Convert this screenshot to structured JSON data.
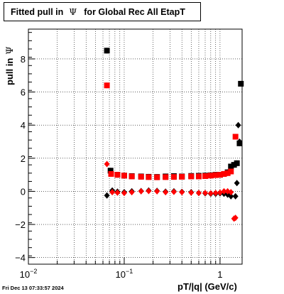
{
  "title": {
    "before": "Fitted pull in",
    "symbol": "Ψ",
    "after": "for Global Rec All EtapT"
  },
  "ylabel": {
    "text": "pull in",
    "symbol": "Ψ"
  },
  "xlabel": "pT/|q| (GeV/c)",
  "timestamp": "Fri Dec 13 07:33:57 2024",
  "x_tick_labels": [
    "10−2",
    "10−1",
    "1"
  ],
  "y_tick_labels": [
    "−4",
    "−2",
    "0",
    "2",
    "4",
    "6",
    "8"
  ],
  "colors": {
    "black": "#000000",
    "red": "#ff0000"
  },
  "chart_data": {
    "type": "scatter",
    "x_scale": "log",
    "xlim": [
      0.01,
      1.7
    ],
    "ylim": [
      -4.4,
      9.8
    ],
    "y_ticks": [
      -4,
      -2,
      0,
      2,
      4,
      6,
      8
    ],
    "grid": true,
    "series": [
      {
        "marker": "square",
        "color": "#000000",
        "points": [
          [
            0.066,
            8.5
          ],
          [
            0.072,
            1.25
          ],
          [
            0.085,
            1.0
          ],
          [
            0.1,
            0.95
          ],
          [
            0.12,
            0.92
          ],
          [
            0.15,
            0.9
          ],
          [
            0.18,
            0.88
          ],
          [
            0.22,
            0.87
          ],
          [
            0.27,
            0.9
          ],
          [
            0.33,
            0.92
          ],
          [
            0.4,
            0.9
          ],
          [
            0.5,
            0.93
          ],
          [
            0.6,
            0.94
          ],
          [
            0.7,
            0.95
          ],
          [
            0.8,
            0.97
          ],
          [
            0.9,
            1.0
          ],
          [
            1.0,
            1.0
          ],
          [
            1.1,
            1.05
          ],
          [
            1.2,
            1.15
          ],
          [
            1.3,
            1.5
          ],
          [
            1.4,
            1.6
          ],
          [
            1.5,
            1.7
          ],
          [
            1.6,
            2.9
          ],
          [
            1.65,
            6.5
          ]
        ]
      },
      {
        "marker": "square",
        "color": "#ff0000",
        "points": [
          [
            0.066,
            6.4
          ],
          [
            0.073,
            1.05
          ],
          [
            0.085,
            1.0
          ],
          [
            0.1,
            0.95
          ],
          [
            0.12,
            0.9
          ],
          [
            0.15,
            0.88
          ],
          [
            0.18,
            0.86
          ],
          [
            0.22,
            0.85
          ],
          [
            0.27,
            0.86
          ],
          [
            0.33,
            0.87
          ],
          [
            0.4,
            0.88
          ],
          [
            0.5,
            0.9
          ],
          [
            0.6,
            0.9
          ],
          [
            0.7,
            0.92
          ],
          [
            0.8,
            0.95
          ],
          [
            0.9,
            0.98
          ],
          [
            1.0,
            1.0
          ],
          [
            1.1,
            1.05
          ],
          [
            1.2,
            1.1
          ],
          [
            1.3,
            1.2
          ],
          [
            1.45,
            3.3
          ]
        ]
      },
      {
        "marker": "diamond",
        "color": "#000000",
        "points": [
          [
            0.066,
            -0.25
          ],
          [
            0.075,
            0.05
          ],
          [
            0.085,
            -0.02
          ],
          [
            0.1,
            -0.05
          ],
          [
            0.12,
            0.0
          ],
          [
            0.15,
            0.02
          ],
          [
            0.18,
            0.05
          ],
          [
            0.22,
            0.03
          ],
          [
            0.27,
            -0.02
          ],
          [
            0.33,
            0.0
          ],
          [
            0.4,
            -0.03
          ],
          [
            0.5,
            -0.05
          ],
          [
            0.6,
            -0.1
          ],
          [
            0.7,
            -0.12
          ],
          [
            0.8,
            -0.15
          ],
          [
            0.9,
            -0.15
          ],
          [
            1.0,
            -0.12
          ],
          [
            1.1,
            -0.15
          ],
          [
            1.2,
            -0.2
          ],
          [
            1.3,
            -0.3
          ],
          [
            1.45,
            -0.3
          ],
          [
            1.5,
            0.5
          ],
          [
            1.55,
            4.0
          ],
          [
            1.6,
            3.0
          ]
        ]
      },
      {
        "marker": "diamond",
        "color": "#ff0000",
        "points": [
          [
            0.066,
            1.65
          ],
          [
            0.075,
            -0.05
          ],
          [
            0.085,
            -0.08
          ],
          [
            0.1,
            -0.1
          ],
          [
            0.12,
            -0.05
          ],
          [
            0.15,
            0.0
          ],
          [
            0.18,
            0.02
          ],
          [
            0.22,
            0.0
          ],
          [
            0.27,
            -0.05
          ],
          [
            0.33,
            -0.03
          ],
          [
            0.4,
            -0.05
          ],
          [
            0.5,
            -0.08
          ],
          [
            0.6,
            -0.1
          ],
          [
            0.7,
            -0.1
          ],
          [
            0.8,
            -0.12
          ],
          [
            0.9,
            -0.1
          ],
          [
            1.0,
            -0.08
          ],
          [
            1.1,
            0.0
          ],
          [
            1.2,
            0.0
          ],
          [
            1.3,
            -0.05
          ],
          [
            1.4,
            -1.65
          ],
          [
            1.45,
            -1.6
          ]
        ]
      }
    ]
  }
}
